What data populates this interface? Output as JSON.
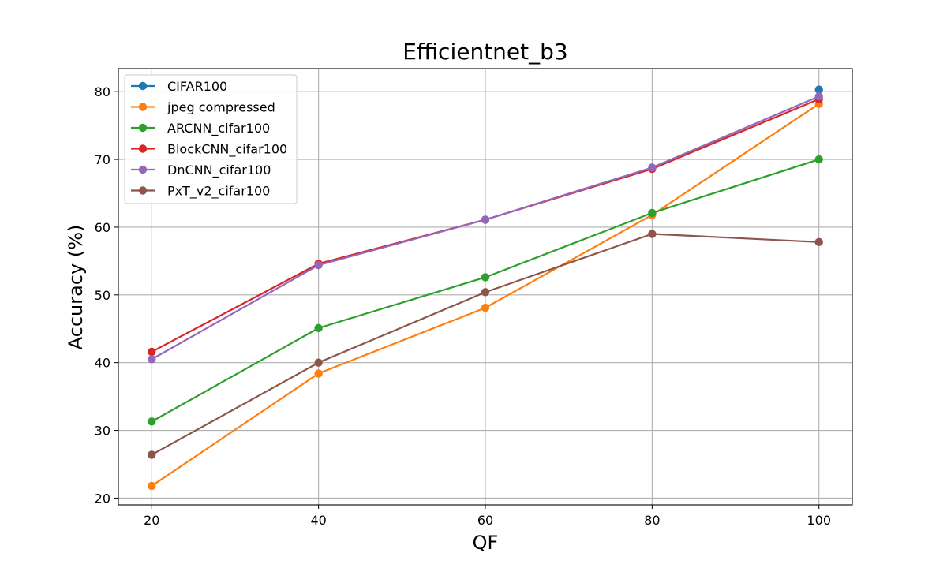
{
  "chart_data": {
    "type": "line",
    "title": "Efficientnet_b3",
    "xlabel": "QF",
    "ylabel": "Accuracy (%)",
    "x": [
      20,
      40,
      60,
      80,
      100
    ],
    "xticks": [
      "20",
      "40",
      "60",
      "80",
      "100"
    ],
    "yticks": [
      "20",
      "30",
      "40",
      "50",
      "60",
      "70",
      "80"
    ],
    "xlim": [
      16,
      104
    ],
    "ylim": [
      19,
      83.4
    ],
    "grid": true,
    "legend_position": "top-left",
    "series": [
      {
        "name": "CIFAR100",
        "color": "#1f77b4",
        "values": [
          null,
          null,
          null,
          null,
          80.3
        ]
      },
      {
        "name": "jpeg compressed",
        "color": "#ff7f0e",
        "values": [
          21.8,
          38.4,
          48.1,
          61.8,
          78.2
        ]
      },
      {
        "name": "ARCNN_cifar100",
        "color": "#2ca02c",
        "values": [
          31.3,
          45.1,
          52.6,
          62.1,
          70.0
        ]
      },
      {
        "name": "BlockCNN_cifar100",
        "color": "#d62728",
        "values": [
          41.6,
          54.6,
          61.1,
          68.6,
          78.9
        ]
      },
      {
        "name": "DnCNN_cifar100",
        "color": "#9467bd",
        "values": [
          40.5,
          54.4,
          61.1,
          68.8,
          79.3
        ]
      },
      {
        "name": "PxT_v2_cifar100",
        "color": "#8c564b",
        "values": [
          26.4,
          40.0,
          50.4,
          59.0,
          57.8
        ]
      }
    ]
  }
}
